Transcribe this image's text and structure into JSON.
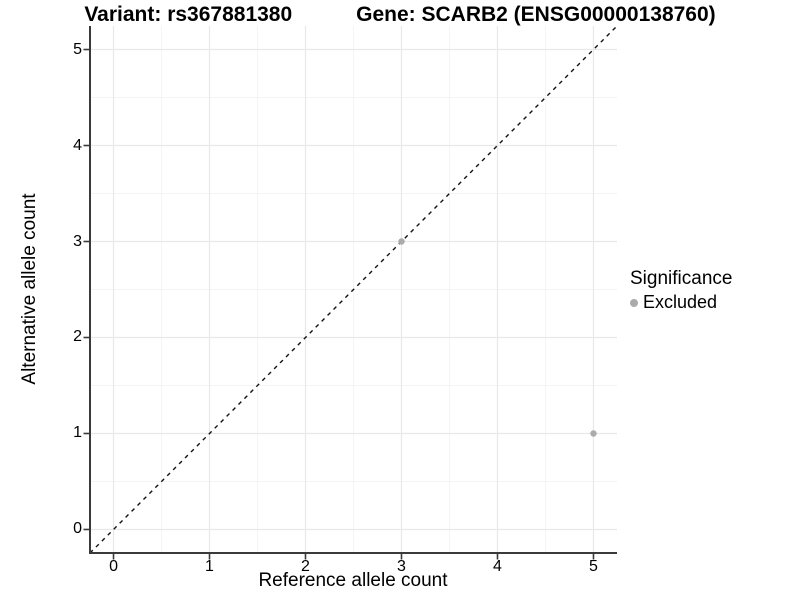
{
  "title": {
    "variant": "Variant: rs367881380",
    "gene": "Gene: SCARB2 (ENSG00000138760)"
  },
  "axes": {
    "x_label": "Reference allele count",
    "y_label": "Alternative allele count"
  },
  "legend": {
    "title": "Significance",
    "items": [
      {
        "label": "Excluded",
        "color": "#ABABAB"
      }
    ]
  },
  "colors": {
    "background": "#FFFFFF",
    "grid_major": "#E8E8E8",
    "grid_minor": "#F4F4F4",
    "axis_line": "#3A3A3A",
    "identity_line": "#111111",
    "point": "#ABABAB",
    "text": "#000000"
  },
  "chart_data": {
    "type": "scatter",
    "title": "Variant: rs367881380    Gene: SCARB2 (ENSG00000138760)",
    "xlabel": "Reference allele count",
    "ylabel": "Alternative allele count",
    "xlim": [
      -0.245,
      5.245
    ],
    "ylim": [
      -0.245,
      5.245
    ],
    "x_ticks": [
      0,
      1,
      2,
      3,
      4,
      5
    ],
    "y_ticks": [
      0,
      1,
      2,
      3,
      4,
      5
    ],
    "minor_ticks": [
      0.5,
      1.5,
      2.5,
      3.5,
      4.5
    ],
    "grid": true,
    "legend_position": "right",
    "legend_title": "Significance",
    "series": [
      {
        "name": "Excluded",
        "color": "#ABABAB",
        "points": [
          {
            "x": 3,
            "y": 3
          },
          {
            "x": 5,
            "y": 1
          }
        ]
      }
    ],
    "reference_line": {
      "kind": "identity",
      "equation": "y = x",
      "style": "dashed",
      "color": "#111111"
    }
  }
}
